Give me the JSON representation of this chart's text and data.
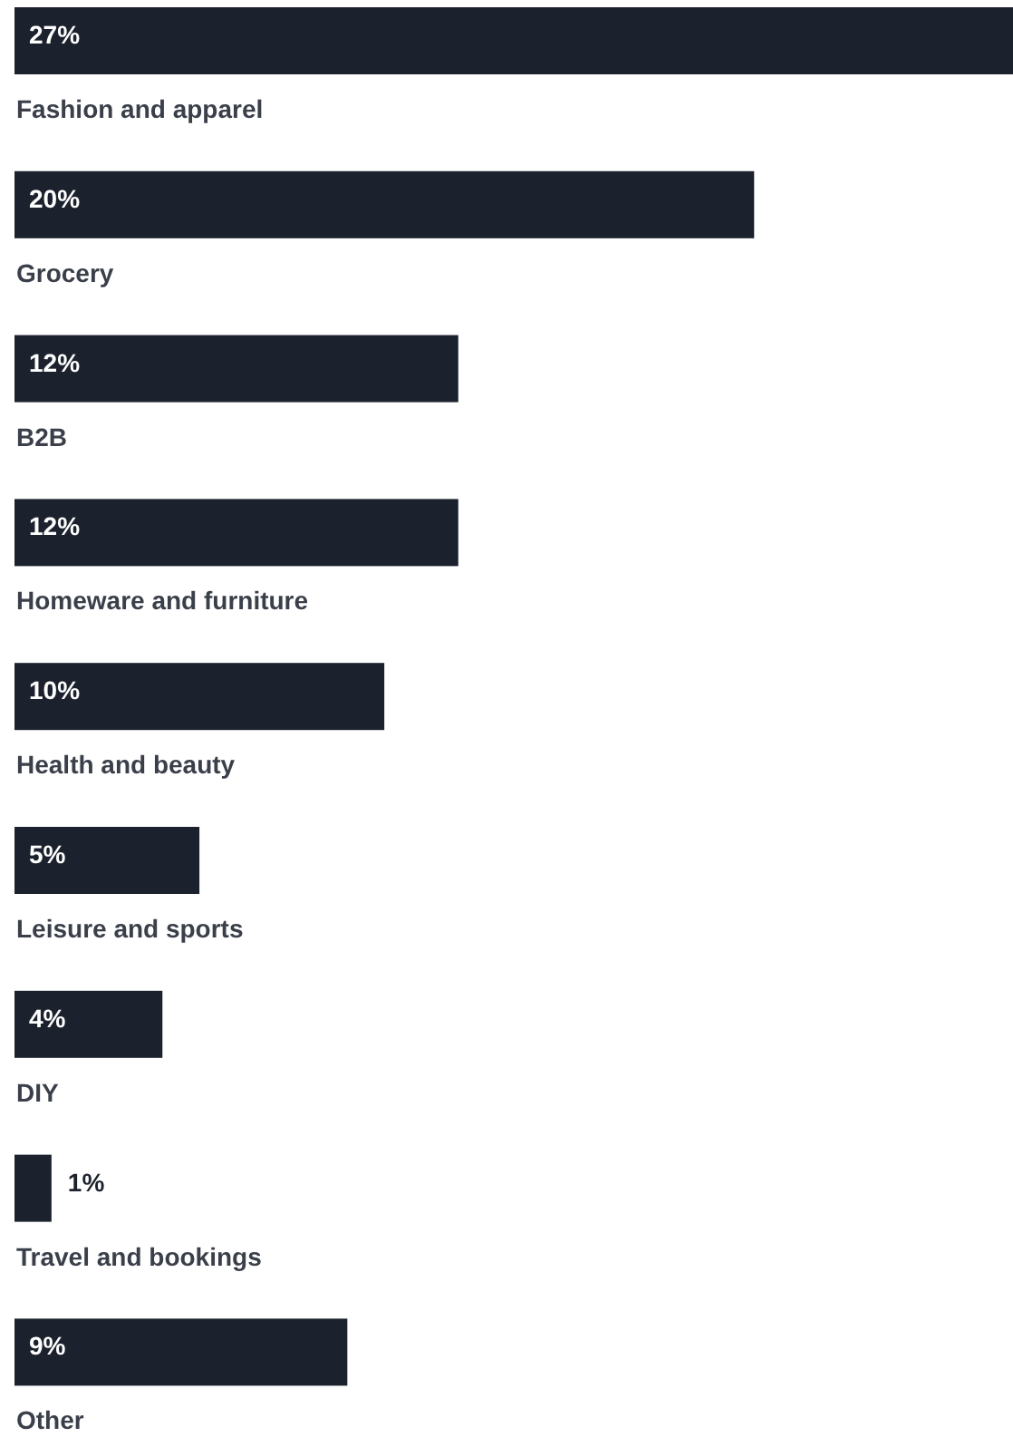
{
  "chart_data": {
    "type": "bar",
    "orientation": "horizontal",
    "categories": [
      "Fashion and apparel",
      "Grocery",
      "B2B",
      "Homeware and furniture",
      "Health and beauty",
      "Leisure and sports",
      "DIY",
      "Travel and bookings",
      "Other"
    ],
    "values": [
      27,
      20,
      12,
      12,
      10,
      5,
      4,
      1,
      9
    ],
    "value_labels": [
      "27%",
      "20%",
      "12%",
      "12%",
      "10%",
      "5%",
      "4%",
      "1%",
      "9%"
    ],
    "color": "#1c222d"
  }
}
